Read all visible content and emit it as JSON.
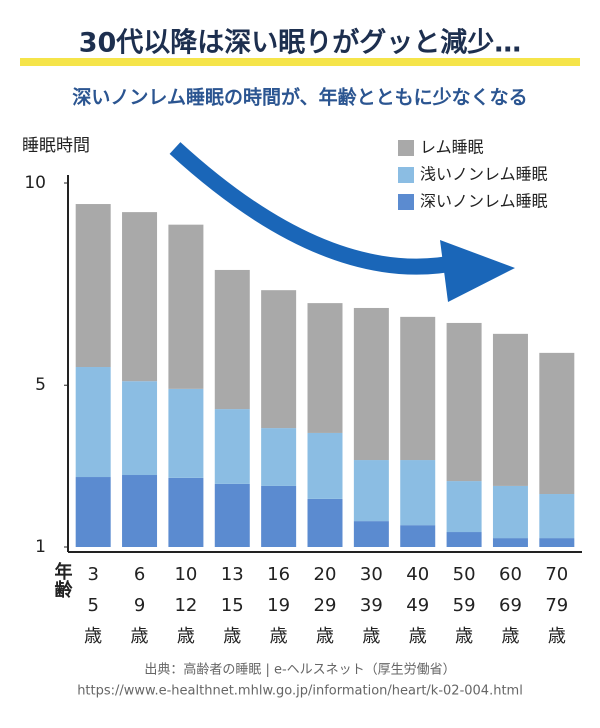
{
  "chart_data": {
    "type": "stacked_bar",
    "title": "30代以降は深い眠りがグッと減少…",
    "subtitle": "深いノンレム睡眠の時間が、年齢とともに少なくなる",
    "y_label": "睡眠時間",
    "x_label": "年齢",
    "categories": [
      [
        "3",
        "5"
      ],
      [
        "6",
        "9"
      ],
      [
        "10",
        "12"
      ],
      [
        "13",
        "15"
      ],
      [
        "16",
        "19"
      ],
      [
        "20",
        "29"
      ],
      [
        "30",
        "39"
      ],
      [
        "40",
        "49"
      ],
      [
        "50",
        "59"
      ],
      [
        "60",
        "69"
      ],
      [
        "70",
        "79"
      ]
    ],
    "age_unit": "歳",
    "series": [
      {
        "name": "深いノンレム睡眠",
        "color": "#5b8bd0",
        "values": [
          1.73,
          1.78,
          1.71,
          1.56,
          1.51,
          1.19,
          0.64,
          0.54,
          0.37,
          0.22,
          0.22
        ]
      },
      {
        "name": "浅いノンレム睡眠",
        "color": "#8bbde3",
        "values": [
          2.72,
          2.32,
          2.2,
          1.85,
          1.43,
          1.63,
          1.51,
          1.61,
          1.26,
          1.29,
          1.09
        ]
      },
      {
        "name": "レム睡眠",
        "color": "#a9a9a9",
        "values": [
          4.03,
          4.18,
          4.06,
          3.44,
          3.41,
          3.21,
          3.76,
          3.54,
          3.91,
          3.76,
          3.49
        ]
      }
    ],
    "ylim": [
      1,
      10
    ],
    "yticks": [
      1,
      5,
      10
    ],
    "source": "出典：高齢者の睡眠 | e-ヘルスネット（厚生労働省）",
    "url": "https://www.e-healthnet.mhlw.go.jp/information/heart/k-02-004.html"
  }
}
